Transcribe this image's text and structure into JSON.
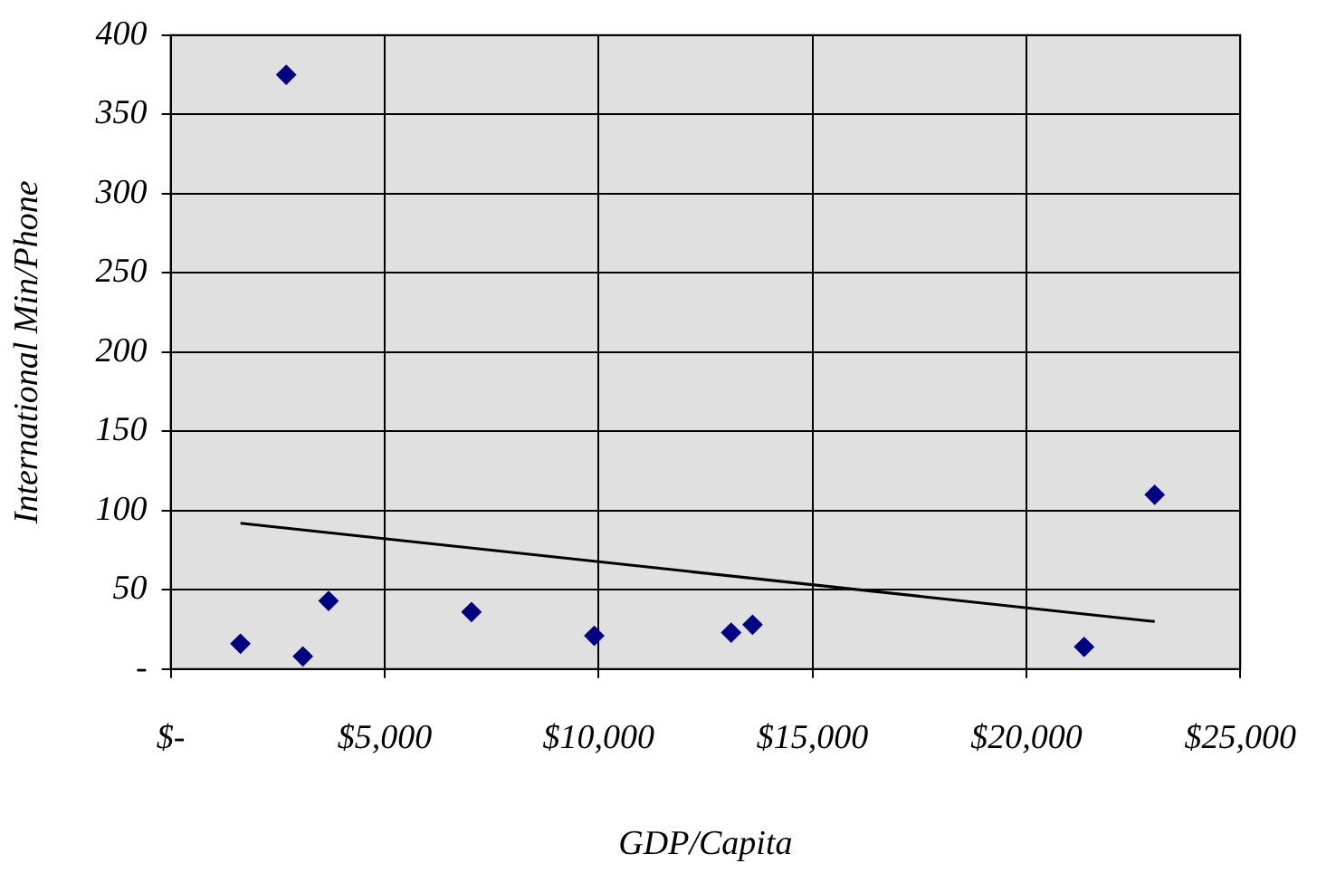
{
  "chart_data": {
    "type": "scatter",
    "xlabel": "GDP/Capita",
    "ylabel": "International Min/Phone",
    "series": [
      {
        "color": "#000080",
        "marker": "diamond",
        "x": [
          1630,
          2700,
          3090,
          3690,
          7030,
          9900,
          13100,
          13600,
          21350,
          23000
        ],
        "values": [
          16,
          375,
          8,
          43,
          36,
          21,
          23,
          28,
          14,
          110
        ]
      },
      {
        "type": "line",
        "marker": "none",
        "color": "#000000",
        "x": [
          1630,
          23000
        ],
        "values": [
          92,
          30
        ]
      }
    ],
    "xlim": [
      0,
      25000
    ],
    "xticks": [
      {
        "value": 0,
        "label": "$-"
      },
      {
        "value": 5000,
        "label": "$5,000"
      },
      {
        "value": 10000,
        "label": "$10,000"
      },
      {
        "value": 15000,
        "label": "$15,000"
      },
      {
        "value": 20000,
        "label": "$20,000"
      },
      {
        "value": 25000,
        "label": "$25,000"
      }
    ],
    "ylim": [
      0,
      400
    ],
    "yticks": [
      {
        "value": 0,
        "label": "-"
      },
      50,
      100,
      150,
      200,
      250,
      300,
      350,
      400
    ],
    "grid": true,
    "legend": false
  }
}
